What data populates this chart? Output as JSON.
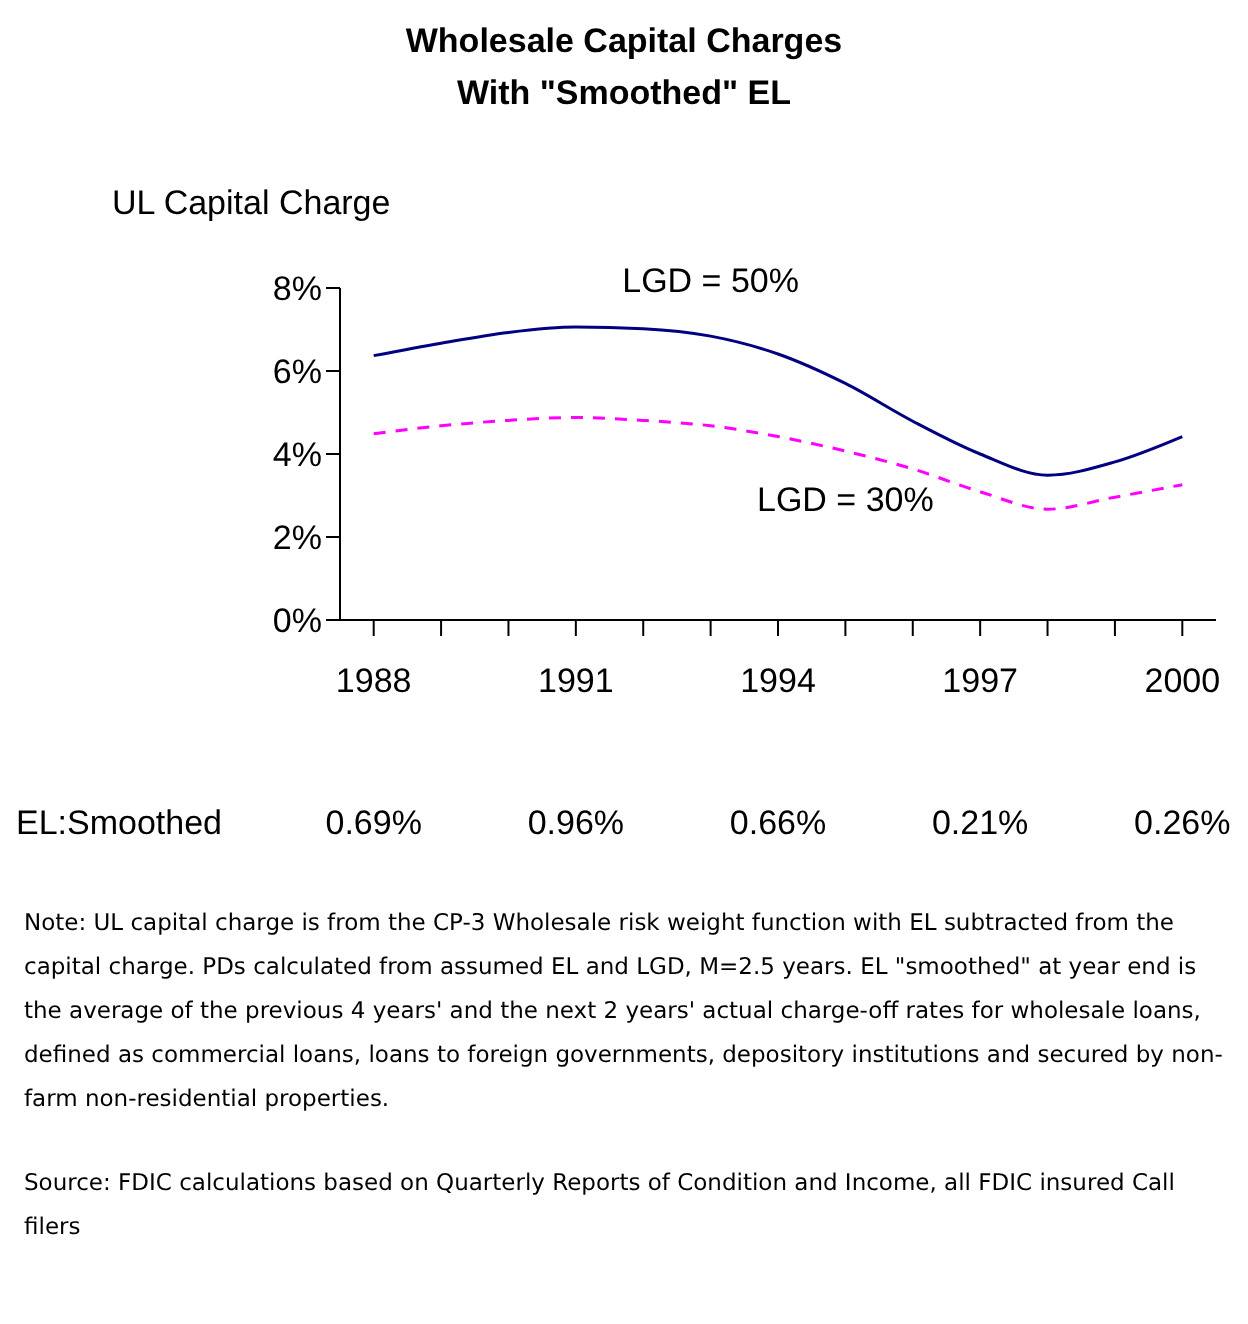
{
  "chart_data": {
    "type": "line",
    "title": "Wholesale Capital Charges\nWith \"Smoothed\" EL",
    "ylabel": "UL Capital Charge",
    "categories": [
      "1988",
      null,
      null,
      "1991",
      null,
      null,
      "1994",
      null,
      null,
      "1997",
      null,
      null,
      "2000"
    ],
    "series": [
      {
        "name": "LGD = 50%",
        "color": "#000080",
        "line_style": "solid",
        "values": [
          6.37,
          6.67,
          6.93,
          7.06,
          7.02,
          6.84,
          6.41,
          5.7,
          4.79,
          4.0,
          3.49,
          3.81,
          4.42
        ]
      },
      {
        "name": "LGD = 30%",
        "color": "#ff00ff",
        "line_style": "dashed",
        "values": [
          4.49,
          4.68,
          4.81,
          4.88,
          4.81,
          4.68,
          4.42,
          4.07,
          3.64,
          3.09,
          2.67,
          2.96,
          3.26
        ]
      }
    ],
    "ylim": [
      0,
      8
    ],
    "yticks": [
      {
        "value": 0,
        "label": "0%"
      },
      {
        "value": 2,
        "label": "2%"
      },
      {
        "value": 4,
        "label": "4%"
      },
      {
        "value": 6,
        "label": "6%"
      },
      {
        "value": 8,
        "label": "8%"
      }
    ],
    "grid": false,
    "legend": false,
    "marker": "none",
    "annotations": [
      "EL:Smoothed",
      "0.69%",
      "0.96%",
      "0.66%",
      "0.21%",
      "0.26%",
      "Note: UL capital charge is from the CP-3 Wholesale risk weight function with EL subtracted from the capital charge.  PDs calculated from assumed EL and LGD, M=2.5 years.  EL \"smoothed\" at year end is the average of the previous 4 years' and the next 2 years' actual charge-off rates for wholesale loans, defined as commercial loans, loans to foreign governments, depository institutions and secured by non-farm non-residential properties.",
      "Source: FDIC calculations based on Quarterly Reports of Condition and Income, all FDIC insured Call filers"
    ]
  }
}
